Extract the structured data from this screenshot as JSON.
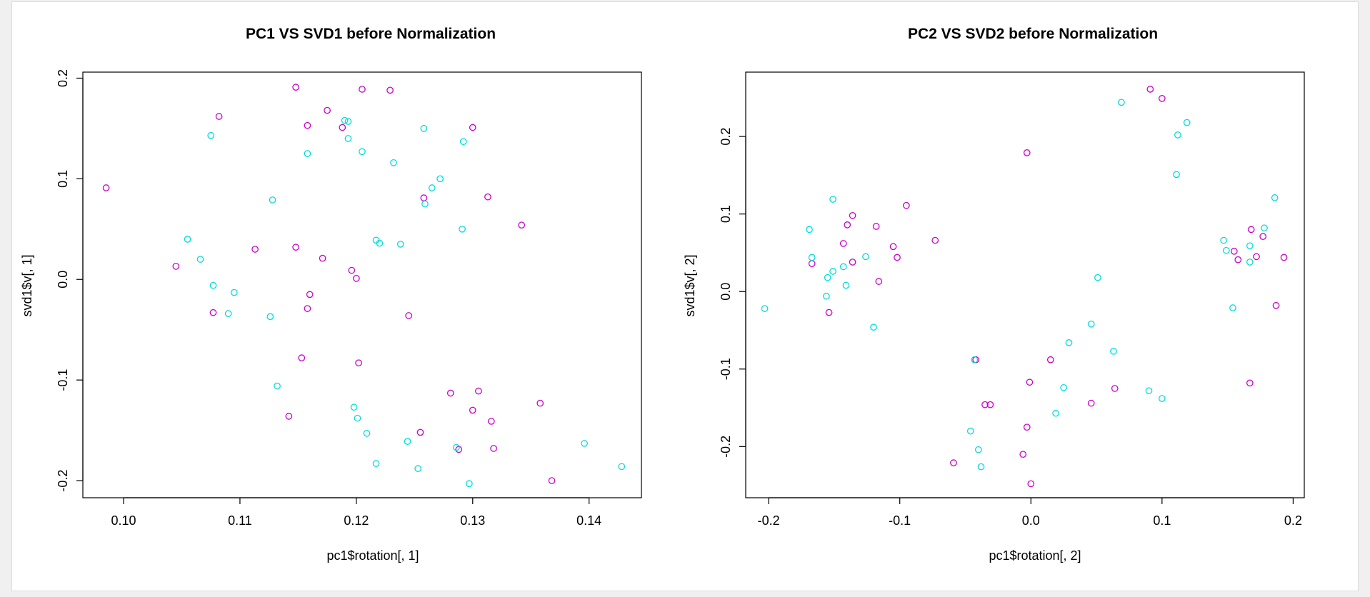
{
  "chart_data": [
    {
      "type": "scatter",
      "title": "PC1 VS SVD1 before Normalization",
      "xlabel": "pc1$rotation[, 1]",
      "ylabel": "svd1$v[, 1]",
      "xlim": [
        0.0965,
        0.1445
      ],
      "ylim": [
        -0.217,
        0.206
      ],
      "xticks": [
        0.1,
        0.11,
        0.12,
        0.13,
        0.14
      ],
      "xtick_labels": [
        "0.10",
        "0.11",
        "0.12",
        "0.13",
        "0.14"
      ],
      "yticks": [
        -0.2,
        -0.1,
        0.0,
        0.1,
        0.2
      ],
      "ytick_labels": [
        "-0.2",
        "-0.1",
        "0.0",
        "0.1",
        "0.2"
      ],
      "grid": false,
      "series": [
        {
          "color": "#cc00cc",
          "points": [
            [
              0.0985,
              0.091
            ],
            [
              0.1045,
              0.013
            ],
            [
              0.1082,
              0.162
            ],
            [
              0.1077,
              -0.033
            ],
            [
              0.1113,
              0.03
            ],
            [
              0.1148,
              0.191
            ],
            [
              0.1148,
              0.032
            ],
            [
              0.1153,
              -0.078
            ],
            [
              0.1158,
              0.153
            ],
            [
              0.116,
              -0.015
            ],
            [
              0.1158,
              -0.029
            ],
            [
              0.1142,
              -0.136
            ],
            [
              0.1171,
              0.021
            ],
            [
              0.1175,
              0.168
            ],
            [
              0.1188,
              0.151
            ],
            [
              0.1196,
              0.009
            ],
            [
              0.12,
              0.001
            ],
            [
              0.1202,
              -0.083
            ],
            [
              0.1205,
              0.189
            ],
            [
              0.1229,
              0.188
            ],
            [
              0.1245,
              -0.036
            ],
            [
              0.1255,
              -0.152
            ],
            [
              0.1258,
              0.081
            ],
            [
              0.1281,
              -0.113
            ],
            [
              0.1288,
              -0.169
            ],
            [
              0.13,
              0.151
            ],
            [
              0.13,
              -0.13
            ],
            [
              0.1305,
              -0.111
            ],
            [
              0.1313,
              0.082
            ],
            [
              0.1316,
              -0.141
            ],
            [
              0.1318,
              -0.168
            ],
            [
              0.1342,
              0.054
            ],
            [
              0.1358,
              -0.123
            ],
            [
              0.1368,
              -0.2
            ]
          ]
        },
        {
          "color": "#00dddd",
          "points": [
            [
              0.1055,
              0.04
            ],
            [
              0.1066,
              0.02
            ],
            [
              0.1075,
              0.143
            ],
            [
              0.1077,
              -0.006
            ],
            [
              0.109,
              -0.034
            ],
            [
              0.1095,
              -0.013
            ],
            [
              0.1126,
              -0.037
            ],
            [
              0.1128,
              0.079
            ],
            [
              0.1132,
              -0.106
            ],
            [
              0.1158,
              0.125
            ],
            [
              0.119,
              0.158
            ],
            [
              0.1193,
              0.157
            ],
            [
              0.1193,
              0.14
            ],
            [
              0.1198,
              -0.127
            ],
            [
              0.1201,
              -0.138
            ],
            [
              0.1205,
              0.127
            ],
            [
              0.1209,
              -0.153
            ],
            [
              0.1217,
              0.039
            ],
            [
              0.1217,
              -0.183
            ],
            [
              0.122,
              0.036
            ],
            [
              0.1232,
              0.116
            ],
            [
              0.1238,
              0.035
            ],
            [
              0.1244,
              -0.161
            ],
            [
              0.1253,
              -0.188
            ],
            [
              0.1258,
              0.15
            ],
            [
              0.1259,
              0.075
            ],
            [
              0.1265,
              0.091
            ],
            [
              0.1272,
              0.1
            ],
            [
              0.1286,
              -0.167
            ],
            [
              0.1291,
              0.05
            ],
            [
              0.1292,
              0.137
            ],
            [
              0.1297,
              -0.203
            ],
            [
              0.1396,
              -0.163
            ],
            [
              0.1428,
              -0.186
            ]
          ]
        }
      ]
    },
    {
      "type": "scatter",
      "title": "PC2 VS SVD2 before Normalization",
      "xlabel": "pc1$rotation[, 2]",
      "ylabel": "svd1$v[, 2]",
      "xlim": [
        -0.2175,
        0.2085
      ],
      "ylim": [
        -0.266,
        0.283
      ],
      "xticks": [
        -0.2,
        -0.1,
        0.0,
        0.1,
        0.2
      ],
      "xtick_labels": [
        "-0.2",
        "-0.1",
        "0.0",
        "0.1",
        "0.2"
      ],
      "yticks": [
        -0.2,
        -0.1,
        0.0,
        0.1,
        0.2
      ],
      "ytick_labels": [
        "-0.2",
        "-0.1",
        "0.0",
        "0.1",
        "0.2"
      ],
      "grid": false,
      "series": [
        {
          "color": "#cc00cc",
          "points": [
            [
              -0.167,
              0.036
            ],
            [
              -0.154,
              -0.027
            ],
            [
              -0.143,
              0.062
            ],
            [
              -0.14,
              0.086
            ],
            [
              -0.136,
              0.038
            ],
            [
              -0.136,
              0.098
            ],
            [
              -0.118,
              0.084
            ],
            [
              -0.116,
              0.013
            ],
            [
              -0.105,
              0.058
            ],
            [
              -0.102,
              0.044
            ],
            [
              -0.095,
              0.111
            ],
            [
              -0.073,
              0.066
            ],
            [
              -0.059,
              -0.221
            ],
            [
              -0.042,
              -0.088
            ],
            [
              -0.035,
              -0.146
            ],
            [
              -0.031,
              -0.146
            ],
            [
              -0.006,
              -0.21
            ],
            [
              -0.003,
              0.179
            ],
            [
              -0.003,
              -0.175
            ],
            [
              -0.001,
              -0.117
            ],
            [
              0.0,
              -0.248
            ],
            [
              0.015,
              -0.088
            ],
            [
              0.046,
              -0.144
            ],
            [
              0.064,
              -0.125
            ],
            [
              0.091,
              0.261
            ],
            [
              0.1,
              0.249
            ],
            [
              0.155,
              0.052
            ],
            [
              0.158,
              0.041
            ],
            [
              0.167,
              -0.118
            ],
            [
              0.168,
              0.08
            ],
            [
              0.172,
              0.045
            ],
            [
              0.177,
              0.071
            ],
            [
              0.187,
              -0.018
            ],
            [
              0.193,
              0.044
            ]
          ]
        },
        {
          "color": "#00dddd",
          "points": [
            [
              -0.203,
              -0.022
            ],
            [
              -0.169,
              0.08
            ],
            [
              -0.167,
              0.044
            ],
            [
              -0.156,
              -0.006
            ],
            [
              -0.155,
              0.018
            ],
            [
              -0.151,
              0.026
            ],
            [
              -0.151,
              0.119
            ],
            [
              -0.143,
              0.032
            ],
            [
              -0.141,
              0.008
            ],
            [
              -0.126,
              0.045
            ],
            [
              -0.12,
              -0.046
            ],
            [
              -0.046,
              -0.18
            ],
            [
              -0.043,
              -0.088
            ],
            [
              -0.04,
              -0.204
            ],
            [
              -0.038,
              -0.226
            ],
            [
              0.019,
              -0.157
            ],
            [
              0.025,
              -0.124
            ],
            [
              0.029,
              -0.066
            ],
            [
              0.046,
              -0.042
            ],
            [
              0.051,
              0.018
            ],
            [
              0.063,
              -0.077
            ],
            [
              0.069,
              0.244
            ],
            [
              0.09,
              -0.128
            ],
            [
              0.1,
              -0.138
            ],
            [
              0.111,
              0.151
            ],
            [
              0.112,
              0.202
            ],
            [
              0.119,
              0.218
            ],
            [
              0.147,
              0.066
            ],
            [
              0.149,
              0.053
            ],
            [
              0.154,
              -0.021
            ],
            [
              0.167,
              0.038
            ],
            [
              0.167,
              0.059
            ],
            [
              0.178,
              0.082
            ],
            [
              0.186,
              0.121
            ]
          ]
        }
      ]
    }
  ]
}
